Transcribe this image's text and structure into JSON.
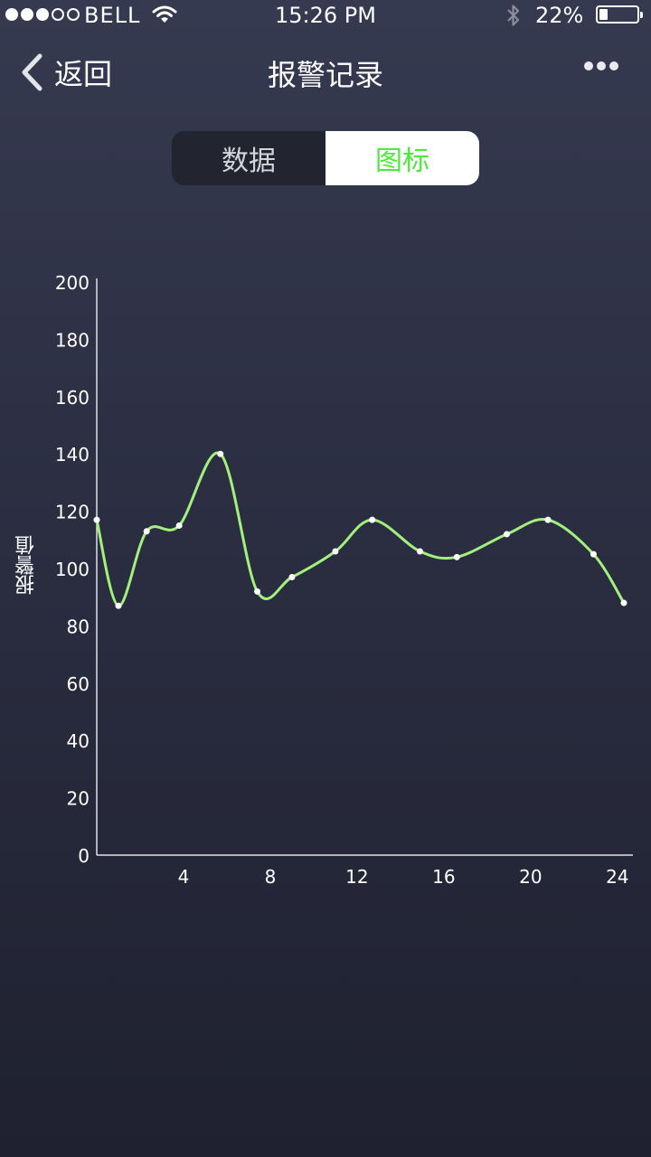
{
  "status_bar": {
    "carrier": "BELL",
    "time": "15:26 PM",
    "battery_percent": "22%",
    "battery_level": 0.22,
    "signal_bars_filled": 3,
    "signal_bars_total": 5
  },
  "nav": {
    "back_label": "返回",
    "title": "报警记录"
  },
  "segment": {
    "data_label": "数据",
    "chart_label": "图标",
    "selected": "chart"
  },
  "colors": {
    "line": "#a3f07c",
    "selected_tab_text": "#4ceb3a",
    "axis": "#e0e0e6"
  },
  "chart_data": {
    "type": "line",
    "title": "",
    "xlabel": "",
    "ylabel": "报警值",
    "xlim": [
      0,
      24.3
    ],
    "ylim": [
      0,
      200
    ],
    "x_ticks": [
      4,
      8,
      12,
      16,
      20,
      24
    ],
    "y_ticks": [
      0,
      20,
      40,
      60,
      80,
      100,
      120,
      140,
      160,
      180,
      200
    ],
    "grid": false,
    "smooth": true,
    "series": [
      {
        "name": "",
        "x": [
          0,
          1,
          2.3,
          3.8,
          5.7,
          7.4,
          9,
          11,
          12.7,
          14.9,
          16.6,
          18.9,
          20.8,
          22.9,
          24.3
        ],
        "y": [
          117,
          87,
          113,
          115,
          140,
          92,
          97,
          106,
          117,
          106,
          104,
          112,
          117,
          105,
          88
        ]
      }
    ]
  }
}
